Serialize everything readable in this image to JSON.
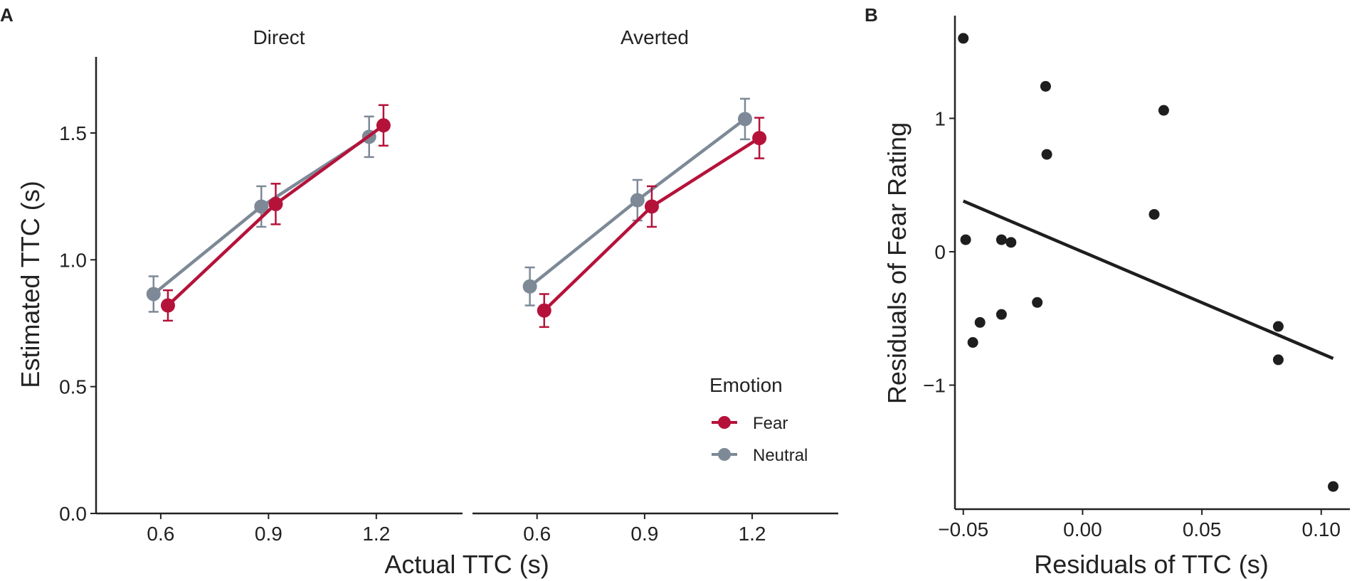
{
  "colors": {
    "fear": "#b5123a",
    "neutral": "#7d8997",
    "axis": "#222222",
    "text": "#222222",
    "scatter": "#1e1e1e"
  },
  "chart_data": [
    {
      "id": "A",
      "panel_label": "A",
      "type": "line",
      "ylabel": "Estimated TTC (s)",
      "xlabel": "Actual TTC (s)",
      "ylim": [
        0,
        1.8
      ],
      "yticks": [
        0.0,
        0.5,
        1.0,
        1.5
      ],
      "ytick_labels": [
        "0.0",
        "0.5",
        "1.0",
        "1.5"
      ],
      "xlim": [
        0.42,
        1.44
      ],
      "xticks": [
        0.6,
        0.9,
        1.2
      ],
      "xtick_labels": [
        "0.6",
        "0.9",
        "1.2"
      ],
      "legend": {
        "title": "Emotion",
        "position": "right",
        "entries": [
          "Fear",
          "Neutral"
        ]
      },
      "facets": [
        {
          "title": "Direct",
          "series": [
            {
              "name": "Fear",
              "x": [
                0.62,
                0.92,
                1.22
              ],
              "y": [
                0.82,
                1.22,
                1.53
              ],
              "err": [
                0.06,
                0.08,
                0.08
              ]
            },
            {
              "name": "Neutral",
              "x": [
                0.58,
                0.88,
                1.18
              ],
              "y": [
                0.865,
                1.21,
                1.485
              ],
              "err": [
                0.07,
                0.08,
                0.08
              ]
            }
          ]
        },
        {
          "title": "Averted",
          "series": [
            {
              "name": "Fear",
              "x": [
                0.62,
                0.92,
                1.22
              ],
              "y": [
                0.8,
                1.21,
                1.48
              ],
              "err": [
                0.065,
                0.08,
                0.08
              ]
            },
            {
              "name": "Neutral",
              "x": [
                0.58,
                0.88,
                1.18
              ],
              "y": [
                0.895,
                1.235,
                1.555
              ],
              "err": [
                0.075,
                0.08,
                0.08
              ]
            }
          ]
        }
      ]
    },
    {
      "id": "B",
      "panel_label": "B",
      "type": "scatter",
      "xlabel": "Residuals of TTC (s)",
      "ylabel": "Residuals of Fear Rating",
      "xlim": [
        -0.0535,
        0.112
      ],
      "ylim": [
        -1.93,
        1.77
      ],
      "xticks": [
        -0.05,
        0.0,
        0.05,
        0.1
      ],
      "xtick_labels": [
        "−0.05",
        "0.00",
        "0.05",
        "0.10"
      ],
      "yticks": [
        -1,
        0,
        1
      ],
      "ytick_labels": [
        "−1",
        "0",
        "1"
      ],
      "points": [
        {
          "x": -0.05,
          "y": 1.6
        },
        {
          "x": -0.0155,
          "y": 1.24
        },
        {
          "x": 0.034,
          "y": 1.06
        },
        {
          "x": -0.015,
          "y": 0.73
        },
        {
          "x": 0.03,
          "y": 0.28
        },
        {
          "x": -0.049,
          "y": 0.09
        },
        {
          "x": -0.034,
          "y": 0.09
        },
        {
          "x": -0.03,
          "y": 0.07
        },
        {
          "x": -0.019,
          "y": -0.38
        },
        {
          "x": -0.034,
          "y": -0.47
        },
        {
          "x": -0.043,
          "y": -0.53
        },
        {
          "x": -0.046,
          "y": -0.68
        },
        {
          "x": 0.082,
          "y": -0.56
        },
        {
          "x": 0.082,
          "y": -0.81
        },
        {
          "x": 0.105,
          "y": -1.76
        }
      ],
      "fit_line": {
        "x": [
          -0.05,
          0.105
        ],
        "y": [
          0.38,
          -0.8
        ]
      }
    }
  ]
}
